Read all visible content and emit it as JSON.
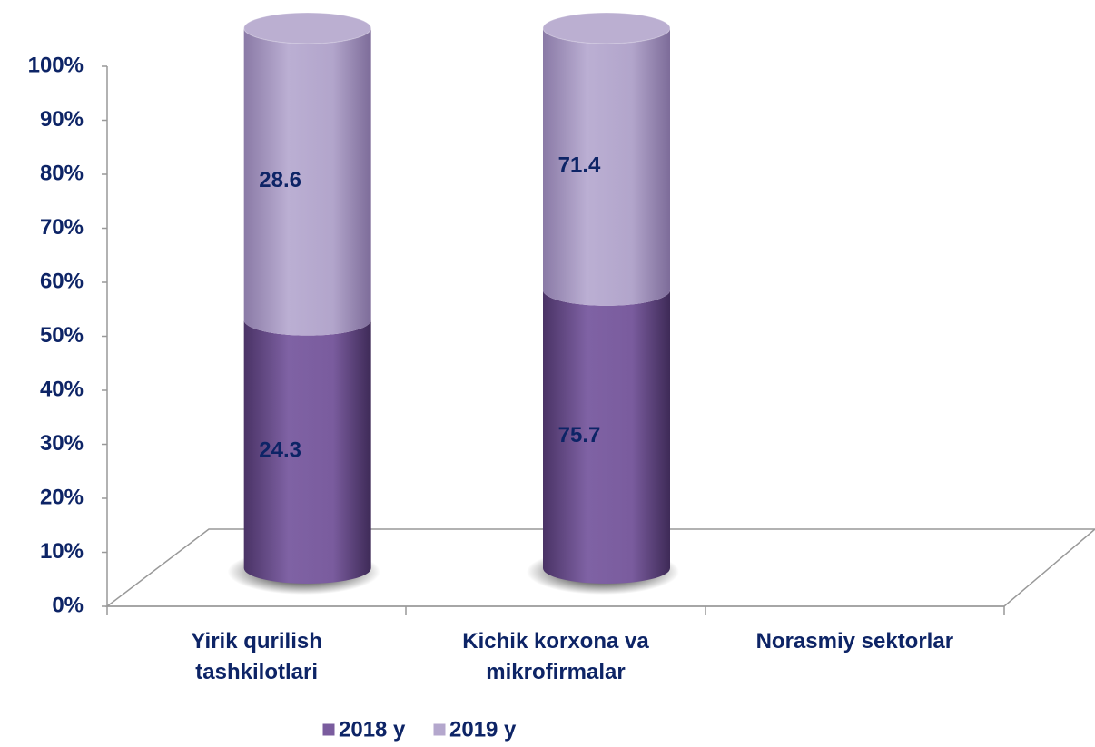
{
  "chart_data": {
    "type": "bar",
    "stacked": "percent",
    "categories": [
      "Yirik qurilish tashkilotlari",
      "Kichik korxona va mikrofirmalar",
      "Norasmiy sektorlar"
    ],
    "series": [
      {
        "name": "2018 y",
        "color": "#7a5c9e",
        "values": [
          24.3,
          75.7,
          null
        ]
      },
      {
        "name": "2019 y",
        "color": "#b4a7cd",
        "values": [
          28.6,
          71.4,
          null
        ]
      }
    ],
    "ylim": [
      0,
      100
    ],
    "yticks": [
      {
        "value": 0,
        "label": "0%"
      },
      {
        "value": 10,
        "label": "10%"
      },
      {
        "value": 20,
        "label": "20%"
      },
      {
        "value": 30,
        "label": "30%"
      },
      {
        "value": 40,
        "label": "40%"
      },
      {
        "value": 50,
        "label": "50%"
      },
      {
        "value": 60,
        "label": "60%"
      },
      {
        "value": 70,
        "label": "70%"
      },
      {
        "value": 80,
        "label": "80%"
      },
      {
        "value": 90,
        "label": "90%"
      },
      {
        "value": 100,
        "label": "100%"
      }
    ],
    "grid": false,
    "legend": "bottom"
  }
}
